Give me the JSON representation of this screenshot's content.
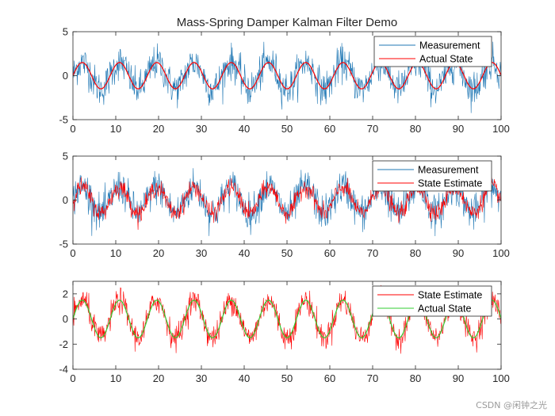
{
  "title": "Mass-Spring Damper Kalman Filter Demo",
  "watermark": "CSDN @闲钟之光",
  "colors": {
    "measurement": "#1f77b4",
    "red": "#ff0000",
    "green": "#32cd32",
    "axis": "#262626"
  },
  "chart_data": [
    {
      "type": "line",
      "title": "Mass-Spring Damper Kalman Filter Demo",
      "xlim": [
        0,
        100
      ],
      "ylim": [
        -5,
        5
      ],
      "xticks": [
        0,
        10,
        20,
        30,
        40,
        50,
        60,
        70,
        80,
        90,
        100
      ],
      "yticks": [
        -5,
        0,
        5
      ],
      "legend": {
        "position": "top-right",
        "entries": [
          "Measurement",
          "Actual State"
        ]
      },
      "series": [
        {
          "name": "Measurement",
          "color": "#1f77b4",
          "kind": "noisy",
          "amplitude": 1.5,
          "period": 8.7,
          "noise_sd": 1.0,
          "sample_step": 0.1
        },
        {
          "name": "Actual State",
          "color": "#ff0000",
          "kind": "sine",
          "amplitude": 1.5,
          "period": 8.7
        }
      ]
    },
    {
      "type": "line",
      "title": "",
      "xlim": [
        0,
        100
      ],
      "ylim": [
        -5,
        5
      ],
      "xticks": [
        0,
        10,
        20,
        30,
        40,
        50,
        60,
        70,
        80,
        90,
        100
      ],
      "yticks": [
        -5,
        0,
        5
      ],
      "legend": {
        "position": "top-right",
        "entries": [
          "Measurement",
          "State Estimate"
        ]
      },
      "series": [
        {
          "name": "Measurement",
          "color": "#1f77b4",
          "kind": "noisy",
          "amplitude": 1.5,
          "period": 8.7,
          "noise_sd": 1.0,
          "sample_step": 0.1
        },
        {
          "name": "State Estimate",
          "color": "#ff0000",
          "kind": "noisy",
          "amplitude": 1.5,
          "period": 8.7,
          "noise_sd": 0.5,
          "sample_step": 0.1
        }
      ]
    },
    {
      "type": "line",
      "title": "",
      "xlim": [
        0,
        100
      ],
      "ylim": [
        -4,
        3
      ],
      "xticks": [
        0,
        10,
        20,
        30,
        40,
        50,
        60,
        70,
        80,
        90,
        100
      ],
      "yticks": [
        -4,
        -2,
        0,
        2
      ],
      "legend": {
        "position": "top-right",
        "entries": [
          "State Estimate",
          "Actual State"
        ]
      },
      "series": [
        {
          "name": "State Estimate",
          "color": "#ff0000",
          "kind": "noisy",
          "amplitude": 1.5,
          "period": 8.7,
          "noise_sd": 0.5,
          "sample_step": 0.1
        },
        {
          "name": "Actual State",
          "color": "#32cd32",
          "kind": "sine",
          "amplitude": 1.5,
          "period": 8.7
        }
      ]
    }
  ]
}
